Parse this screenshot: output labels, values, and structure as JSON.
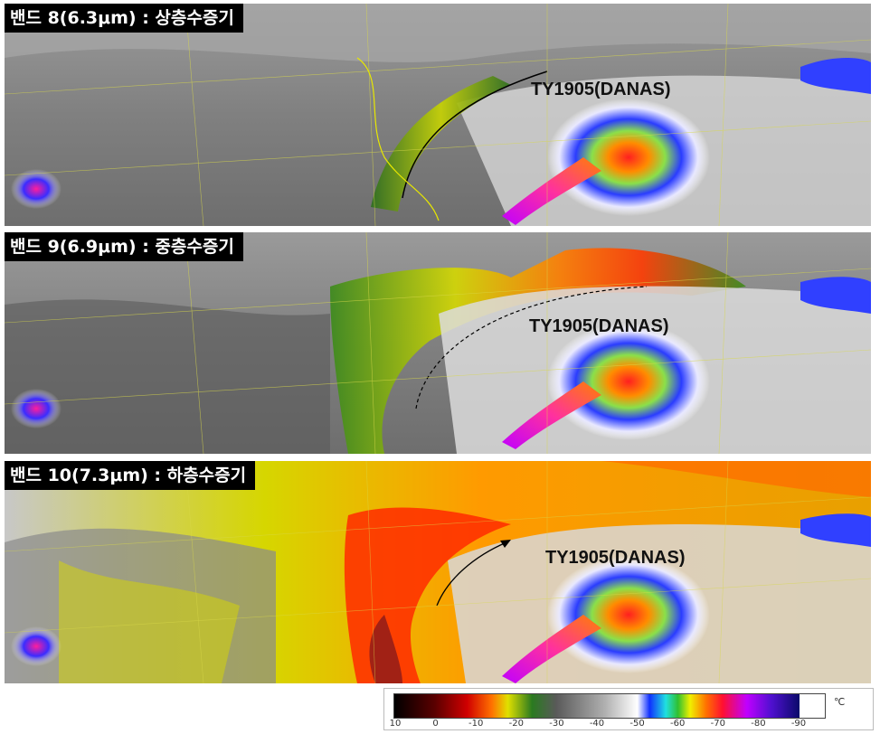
{
  "panels": [
    {
      "band_label": "밴드 8(6.3μm) : 상층수증기",
      "typhoon_label": "TY1905(DANAS)"
    },
    {
      "band_label": "밴드 9(6.9μm) : 중층수증기",
      "typhoon_label": "TY1905(DANAS)"
    },
    {
      "band_label": "밴드 10(7.3μm) : 하층수증기",
      "typhoon_label": "TY1905(DANAS)"
    }
  ],
  "colorbar": {
    "unit": "℃",
    "ticks": [
      "10",
      "0",
      "-10",
      "-20",
      "-30",
      "-40",
      "-50",
      "-60",
      "-70",
      "-80",
      "-90"
    ]
  }
}
